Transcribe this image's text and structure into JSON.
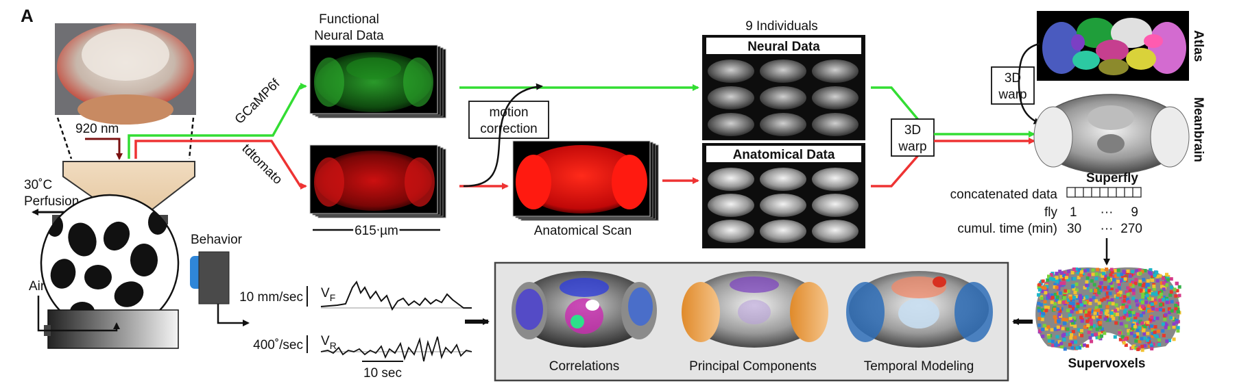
{
  "panel_label": "A",
  "stim": {
    "wavelength": "920 nm",
    "temperature": "30˚C",
    "perfusion": "Perfusion",
    "air": "Air",
    "behavior": "Behavior"
  },
  "channels": {
    "green": "GCaMP6f",
    "red": "tdtomato"
  },
  "functional": {
    "title_line1": "Functional",
    "title_line2": "Neural Data",
    "scale": "615 µm"
  },
  "motion": {
    "line1": "motion",
    "line2": "correction"
  },
  "anatomical_scan": "Anatomical Scan",
  "individuals": {
    "title": "9 Individuals",
    "neural": "Neural Data",
    "anatomical": "Anatomical Data"
  },
  "warp": {
    "line1": "3D",
    "line2": "warp"
  },
  "atlas": {
    "label": "Atlas",
    "warp_line1": "3D",
    "warp_line2": "warp"
  },
  "meanbrain": "Meanbrain",
  "superfly": {
    "title": "Superfly",
    "concat": "concatenated data",
    "fly_label": "fly",
    "fly_start": "1",
    "fly_dots": "···",
    "fly_end": "9",
    "time_label": "cumul. time (min)",
    "time_start": "30",
    "time_dots": "···",
    "time_end": "270"
  },
  "supervoxels": "Supervoxels",
  "traces": {
    "vf_scale": "10 mm/sec",
    "vf_main": "V",
    "vf_sub": "F",
    "vr_scale": "400˚/sec",
    "vr_main": "V",
    "vr_sub": "R",
    "time_scale": "10 sec"
  },
  "analyses": {
    "correlations": "Correlations",
    "pca": "Principal Components",
    "temporal": "Temporal Modeling"
  },
  "colors": {
    "green": "#33dd33",
    "red": "#ee3333",
    "dark_red": "#7a1010",
    "panel_bg": "#e4e4e4"
  }
}
